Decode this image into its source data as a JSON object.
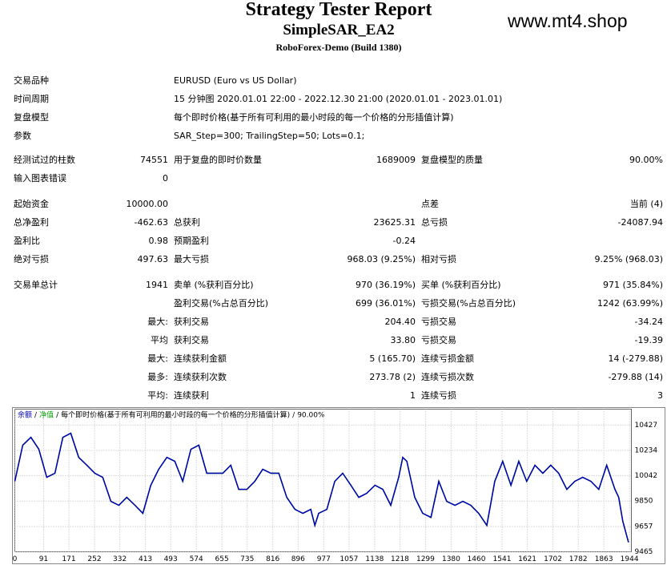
{
  "header": {
    "title": "Strategy Tester Report",
    "subtitle": "SimpleSAR_EA2",
    "broker": "RoboForex-Demo (Build 1380)",
    "watermark": "www.mt4.shop"
  },
  "info": [
    {
      "label": "交易品种",
      "value": "EURUSD (Euro vs US Dollar)"
    },
    {
      "label": "时间周期",
      "value": "15 分钟图 2020.01.01 22:00 - 2022.12.30 21:00 (2020.01.01 - 2023.01.01)"
    },
    {
      "label": "复盘模型",
      "value": "每个即时价格(基于所有可利用的最小时段的每一个价格的分形插值计算)"
    },
    {
      "label": "参数",
      "value": "SAR_Step=300; TrailingStep=50; Lots=0.1;"
    }
  ],
  "stats": [
    [
      "经测试过的柱数",
      "74551",
      "用于复盘的即时价数量",
      "1689009",
      "复盘模型的质量",
      "90.00%"
    ],
    [
      "输入图表错误",
      "0",
      null,
      null,
      null,
      null
    ],
    [
      "起始资金",
      "10000.00",
      null,
      null,
      "点差",
      "当前 (4)"
    ],
    [
      "总净盈利",
      "-462.63",
      "总获利",
      "23625.31",
      "总亏损",
      "-24087.94"
    ],
    [
      "盈利比",
      "0.98",
      "预期盈利",
      "-0.24",
      null,
      null
    ],
    [
      "绝对亏损",
      "497.63",
      "最大亏损",
      "968.03 (9.25%)",
      "相对亏损",
      "9.25% (968.03)"
    ],
    [
      "交易单总计",
      "1941",
      "卖单 (%获利百分比)",
      "970 (36.19%)",
      "买单 (%获利百分比)",
      "971 (35.84%)"
    ],
    [
      null,
      null,
      "盈利交易(%占总百分比)",
      "699 (36.01%)",
      "亏损交易(%占总百分比)",
      "1242 (63.99%)"
    ],
    [
      null,
      "最大:",
      "获利交易",
      "204.40",
      "亏损交易",
      "-34.24"
    ],
    [
      null,
      "平均",
      "获利交易",
      "33.80",
      "亏损交易",
      "-19.39"
    ],
    [
      null,
      "最大:",
      "连续获利金额",
      "5 (165.70)",
      "连续亏损金额",
      "14 (-279.88)"
    ],
    [
      null,
      "最多:",
      "连续获利次数",
      "273.78 (2)",
      "连续亏损次数",
      "-279.88 (14)"
    ],
    [
      null,
      "平均:",
      "连续获利",
      "1",
      "连续亏损",
      "3"
    ]
  ],
  "chart_data": {
    "type": "line",
    "legend_note": [
      "每个即时价格(基于所有可利用的最小时段的每一个价格的分形插值计算)",
      "90.00%"
    ],
    "x": [
      0,
      25,
      51,
      76,
      101,
      127,
      152,
      177,
      202,
      228,
      253,
      278,
      304,
      329,
      354,
      380,
      405,
      430,
      455,
      481,
      506,
      531,
      557,
      582,
      607,
      633,
      658,
      683,
      708,
      734,
      759,
      784,
      810,
      835,
      860,
      886,
      911,
      936,
      949,
      961,
      987,
      1012,
      1037,
      1063,
      1088,
      1113,
      1139,
      1164,
      1189,
      1214,
      1227,
      1240,
      1265,
      1290,
      1316,
      1341,
      1366,
      1392,
      1417,
      1442,
      1467,
      1493,
      1518,
      1543,
      1569,
      1594,
      1619,
      1645,
      1670,
      1695,
      1720,
      1746,
      1771,
      1796,
      1822,
      1847,
      1872,
      1898,
      1910,
      1923,
      1941
    ],
    "series": [
      {
        "name": "余额",
        "color": "#0000b4",
        "values": [
          10000,
          10274,
          10334,
          10243,
          10030,
          10061,
          10334,
          10365,
          10182,
          10122,
          10061,
          10030,
          9848,
          9818,
          9878,
          9818,
          9757,
          9970,
          10091,
          10182,
          10152,
          10000,
          10243,
          10274,
          10061,
          10061,
          10061,
          10122,
          9939,
          9939,
          10000,
          10091,
          10061,
          10061,
          9878,
          9787,
          9757,
          9787,
          9666,
          9757,
          9787,
          10000,
          10061,
          9970,
          9878,
          9909,
          9970,
          9939,
          9818,
          10030,
          10182,
          10152,
          9878,
          9757,
          9726,
          10000,
          9848,
          9818,
          9848,
          9818,
          9757,
          9666,
          10000,
          10152,
          9970,
          10152,
          10000,
          10122,
          10061,
          10122,
          10061,
          9939,
          10000,
          10030,
          10000,
          9939,
          10122,
          9939,
          9878,
          9696,
          9537
        ]
      },
      {
        "name": "净值",
        "color": "#00a000",
        "values": [
          10000,
          10274,
          10334,
          10243,
          10030,
          10061,
          10334,
          10365,
          10182,
          10122,
          10061,
          10030,
          9848,
          9818,
          9878,
          9818,
          9757,
          9970,
          10091,
          10182,
          10152,
          10000,
          10243,
          10274,
          10061,
          10061,
          10061,
          10122,
          9939,
          9939,
          10000,
          10091,
          10061,
          10061,
          9878,
          9787,
          9757,
          9787,
          9666,
          9757,
          9787,
          10000,
          10061,
          9970,
          9878,
          9909,
          9970,
          9939,
          9818,
          10030,
          10182,
          10152,
          9878,
          9757,
          9726,
          10000,
          9848,
          9818,
          9848,
          9818,
          9757,
          9666,
          10000,
          10152,
          9970,
          10152,
          10000,
          10122,
          10061,
          10122,
          10061,
          9939,
          10000,
          10030,
          10000,
          9939,
          10122,
          9939,
          9878,
          9696,
          9537
        ]
      }
    ],
    "xlim": [
      0,
      1950
    ],
    "xticks": [
      0,
      91,
      171,
      252,
      332,
      413,
      493,
      574,
      655,
      735,
      816,
      896,
      977,
      1057,
      1138,
      1218,
      1299,
      1380,
      1460,
      1541,
      1621,
      1702,
      1782,
      1863,
      1944
    ],
    "ylim": [
      9465,
      10548
    ],
    "yticks": [
      9465,
      9657,
      9850,
      10042,
      10234,
      10427
    ],
    "grid": true
  }
}
